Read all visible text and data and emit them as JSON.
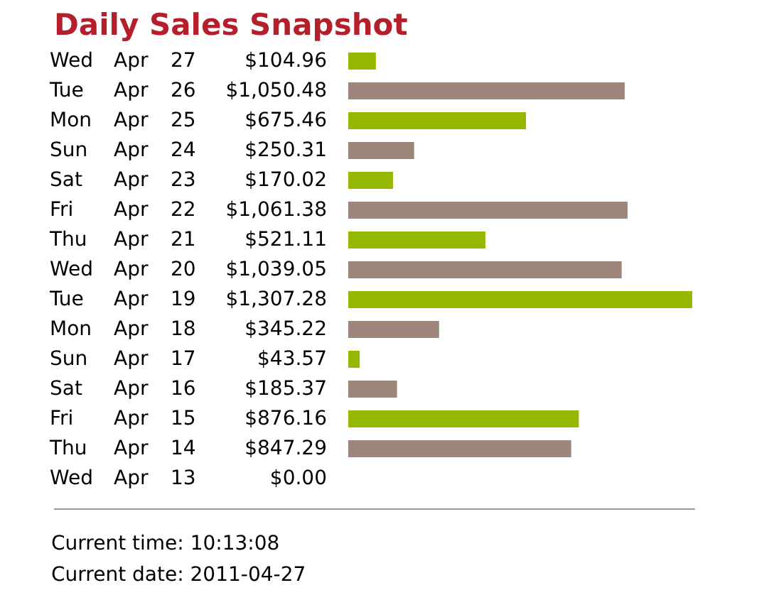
{
  "chart_data": {
    "type": "bar",
    "orientation": "horizontal",
    "title": "Daily Sales Snapshot",
    "categories": [
      "Wed Apr 27",
      "Tue Apr 26",
      "Mon Apr 25",
      "Sun Apr 24",
      "Sat Apr 23",
      "Fri Apr 22",
      "Thu Apr 21",
      "Wed Apr 20",
      "Tue Apr 19",
      "Mon Apr 18",
      "Sun Apr 17",
      "Sat Apr 16",
      "Fri Apr 15",
      "Thu Apr 14",
      "Wed Apr 13"
    ],
    "values": [
      104.96,
      1050.48,
      675.46,
      250.31,
      170.02,
      1061.38,
      521.11,
      1039.05,
      1307.28,
      345.22,
      43.57,
      185.37,
      876.16,
      847.29,
      0
    ],
    "value_labels": [
      "$104.96",
      "$1,050.48",
      "$675.46",
      "$250.31",
      "$170.02",
      "$1,061.38",
      "$521.11",
      "$1,039.05",
      "$1,307.28",
      "$345.22",
      "$43.57",
      "$185.37",
      "$876.16",
      "$847.29",
      "$0.00"
    ],
    "colors": [
      "#94b800",
      "#9c857a",
      "#94b800",
      "#9c857a",
      "#94b800",
      "#9c857a",
      "#94b800",
      "#9c857a",
      "#94b800",
      "#9c857a",
      "#94b800",
      "#9c857a",
      "#94b800",
      "#9c857a",
      "#94b800"
    ],
    "annotations": [
      "Current time: 10:13:08",
      "Current date: 2011-04-27"
    ],
    "tick_labels": "y"
  }
}
